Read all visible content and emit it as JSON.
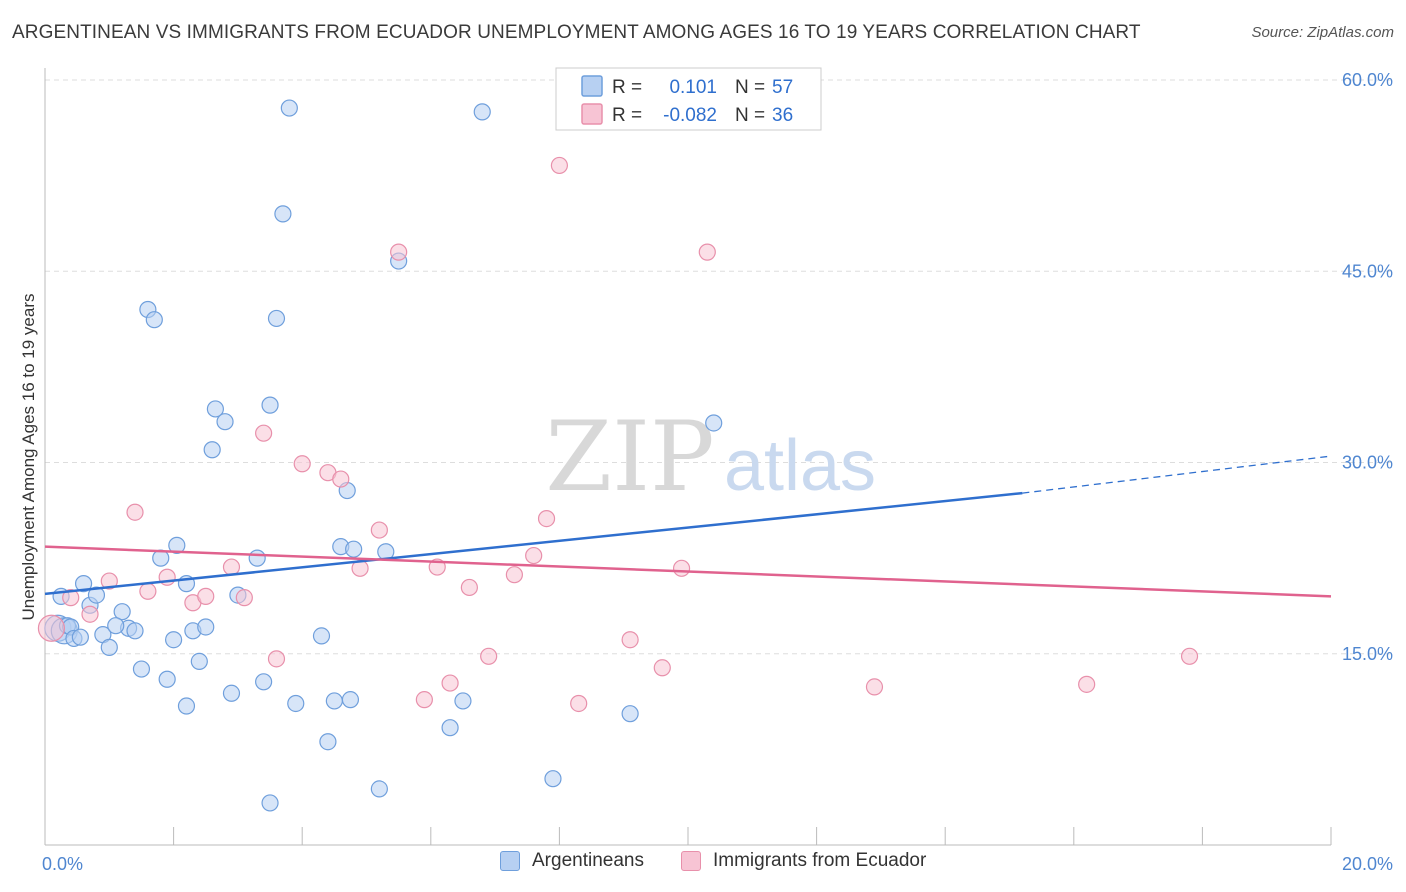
{
  "title": "ARGENTINEAN VS IMMIGRANTS FROM ECUADOR UNEMPLOYMENT AMONG AGES 16 TO 19 YEARS CORRELATION CHART",
  "source": "Source: ZipAtlas.com",
  "watermark": {
    "zip": "ZIP",
    "atlas": "atlas"
  },
  "colors": {
    "blue_fill": "#b7d0f2",
    "blue_stroke": "#6f9fdc",
    "blue_line": "#2f6fce",
    "pink_fill": "#f7c4d4",
    "pink_stroke": "#e890ab",
    "pink_line": "#e0628e",
    "axis_text": "#4f86d0",
    "grid": "#dddddd"
  },
  "legend": {
    "rows": [
      {
        "r_label": "R =",
        "r_value": "0.101",
        "n_label": "N =",
        "n_value": "57",
        "series": "blue"
      },
      {
        "r_label": "R =",
        "r_value": "-0.082",
        "n_label": "N =",
        "n_value": "36",
        "series": "pink"
      }
    ]
  },
  "chart_data": {
    "type": "scatter",
    "title": "ARGENTINEAN VS IMMIGRANTS FROM ECUADOR UNEMPLOYMENT AMONG AGES 16 TO 19 YEARS CORRELATION CHART",
    "xlabel": "",
    "ylabel": "Unemployment Among Ages 16 to 19 years",
    "xlim": [
      0,
      20
    ],
    "ylim": [
      0,
      60
    ],
    "x_tick_labels": [
      "0.0%",
      "20.0%"
    ],
    "y_ticks": [
      15,
      30,
      45,
      60
    ],
    "y_tick_labels": [
      "15.0%",
      "30.0%",
      "45.0%",
      "60.0%"
    ],
    "grid": true,
    "legend_position": "top-center",
    "series": [
      {
        "name": "Argentineans",
        "color": "blue",
        "r": 0.101,
        "n": 57,
        "trend": {
          "x": [
            0,
            15.2
          ],
          "y": [
            19.7,
            27.6
          ],
          "dashed_to": {
            "x": 20,
            "y": 30.5
          }
        },
        "points": [
          [
            0.2,
            17.0
          ],
          [
            0.3,
            16.8
          ],
          [
            0.25,
            19.5
          ],
          [
            0.35,
            17.2
          ],
          [
            0.4,
            17.1
          ],
          [
            0.45,
            16.2
          ],
          [
            0.55,
            16.3
          ],
          [
            0.6,
            20.5
          ],
          [
            0.7,
            18.8
          ],
          [
            0.8,
            19.6
          ],
          [
            0.9,
            16.5
          ],
          [
            1.0,
            15.5
          ],
          [
            1.2,
            18.3
          ],
          [
            1.3,
            17.0
          ],
          [
            1.4,
            16.8
          ],
          [
            1.5,
            13.8
          ],
          [
            1.6,
            42.0
          ],
          [
            1.7,
            41.2
          ],
          [
            1.8,
            22.5
          ],
          [
            1.9,
            13.0
          ],
          [
            2.0,
            16.1
          ],
          [
            2.05,
            23.5
          ],
          [
            2.2,
            20.5
          ],
          [
            2.2,
            10.9
          ],
          [
            2.3,
            16.8
          ],
          [
            2.4,
            14.4
          ],
          [
            2.5,
            17.1
          ],
          [
            2.6,
            31.0
          ],
          [
            2.65,
            34.2
          ],
          [
            2.8,
            33.2
          ],
          [
            2.9,
            11.9
          ],
          [
            3.0,
            19.6
          ],
          [
            3.3,
            22.5
          ],
          [
            3.4,
            12.8
          ],
          [
            3.5,
            3.3
          ],
          [
            3.5,
            34.5
          ],
          [
            3.6,
            41.3
          ],
          [
            3.7,
            49.5
          ],
          [
            3.8,
            57.8
          ],
          [
            3.9,
            11.1
          ],
          [
            4.3,
            16.4
          ],
          [
            4.4,
            8.1
          ],
          [
            4.5,
            11.3
          ],
          [
            4.6,
            23.4
          ],
          [
            4.7,
            27.8
          ],
          [
            4.75,
            11.4
          ],
          [
            4.8,
            23.2
          ],
          [
            5.2,
            4.4
          ],
          [
            5.3,
            23.0
          ],
          [
            5.5,
            45.8
          ],
          [
            6.3,
            9.2
          ],
          [
            6.5,
            11.3
          ],
          [
            6.8,
            57.5
          ],
          [
            7.9,
            5.2
          ],
          [
            9.1,
            10.3
          ],
          [
            10.4,
            33.1
          ],
          [
            1.1,
            17.2
          ]
        ]
      },
      {
        "name": "Immigrants from Ecuador",
        "color": "pink",
        "r": -0.082,
        "n": 36,
        "trend": {
          "x": [
            0,
            20
          ],
          "y": [
            23.4,
            19.5
          ]
        },
        "points": [
          [
            0.1,
            17.0
          ],
          [
            0.4,
            19.4
          ],
          [
            0.7,
            18.1
          ],
          [
            1.0,
            20.7
          ],
          [
            1.4,
            26.1
          ],
          [
            1.6,
            19.9
          ],
          [
            1.9,
            21.0
          ],
          [
            2.3,
            19.0
          ],
          [
            2.5,
            19.5
          ],
          [
            2.9,
            21.8
          ],
          [
            3.1,
            19.4
          ],
          [
            3.4,
            32.3
          ],
          [
            3.6,
            14.6
          ],
          [
            4.0,
            29.9
          ],
          [
            4.4,
            29.2
          ],
          [
            4.6,
            28.7
          ],
          [
            4.9,
            21.7
          ],
          [
            5.2,
            24.7
          ],
          [
            5.5,
            46.5
          ],
          [
            5.9,
            11.4
          ],
          [
            6.1,
            21.8
          ],
          [
            6.3,
            12.7
          ],
          [
            6.6,
            20.2
          ],
          [
            6.9,
            14.8
          ],
          [
            7.3,
            21.2
          ],
          [
            7.6,
            22.7
          ],
          [
            7.8,
            25.6
          ],
          [
            8.0,
            53.3
          ],
          [
            8.3,
            11.1
          ],
          [
            9.1,
            16.1
          ],
          [
            9.6,
            13.9
          ],
          [
            9.9,
            21.7
          ],
          [
            10.3,
            46.5
          ],
          [
            12.9,
            12.4
          ],
          [
            16.2,
            12.6
          ],
          [
            17.8,
            14.8
          ]
        ]
      }
    ]
  },
  "bottom_legend": [
    {
      "label": "Argentineans",
      "series": "blue"
    },
    {
      "label": "Immigrants from Ecuador",
      "series": "pink"
    }
  ]
}
